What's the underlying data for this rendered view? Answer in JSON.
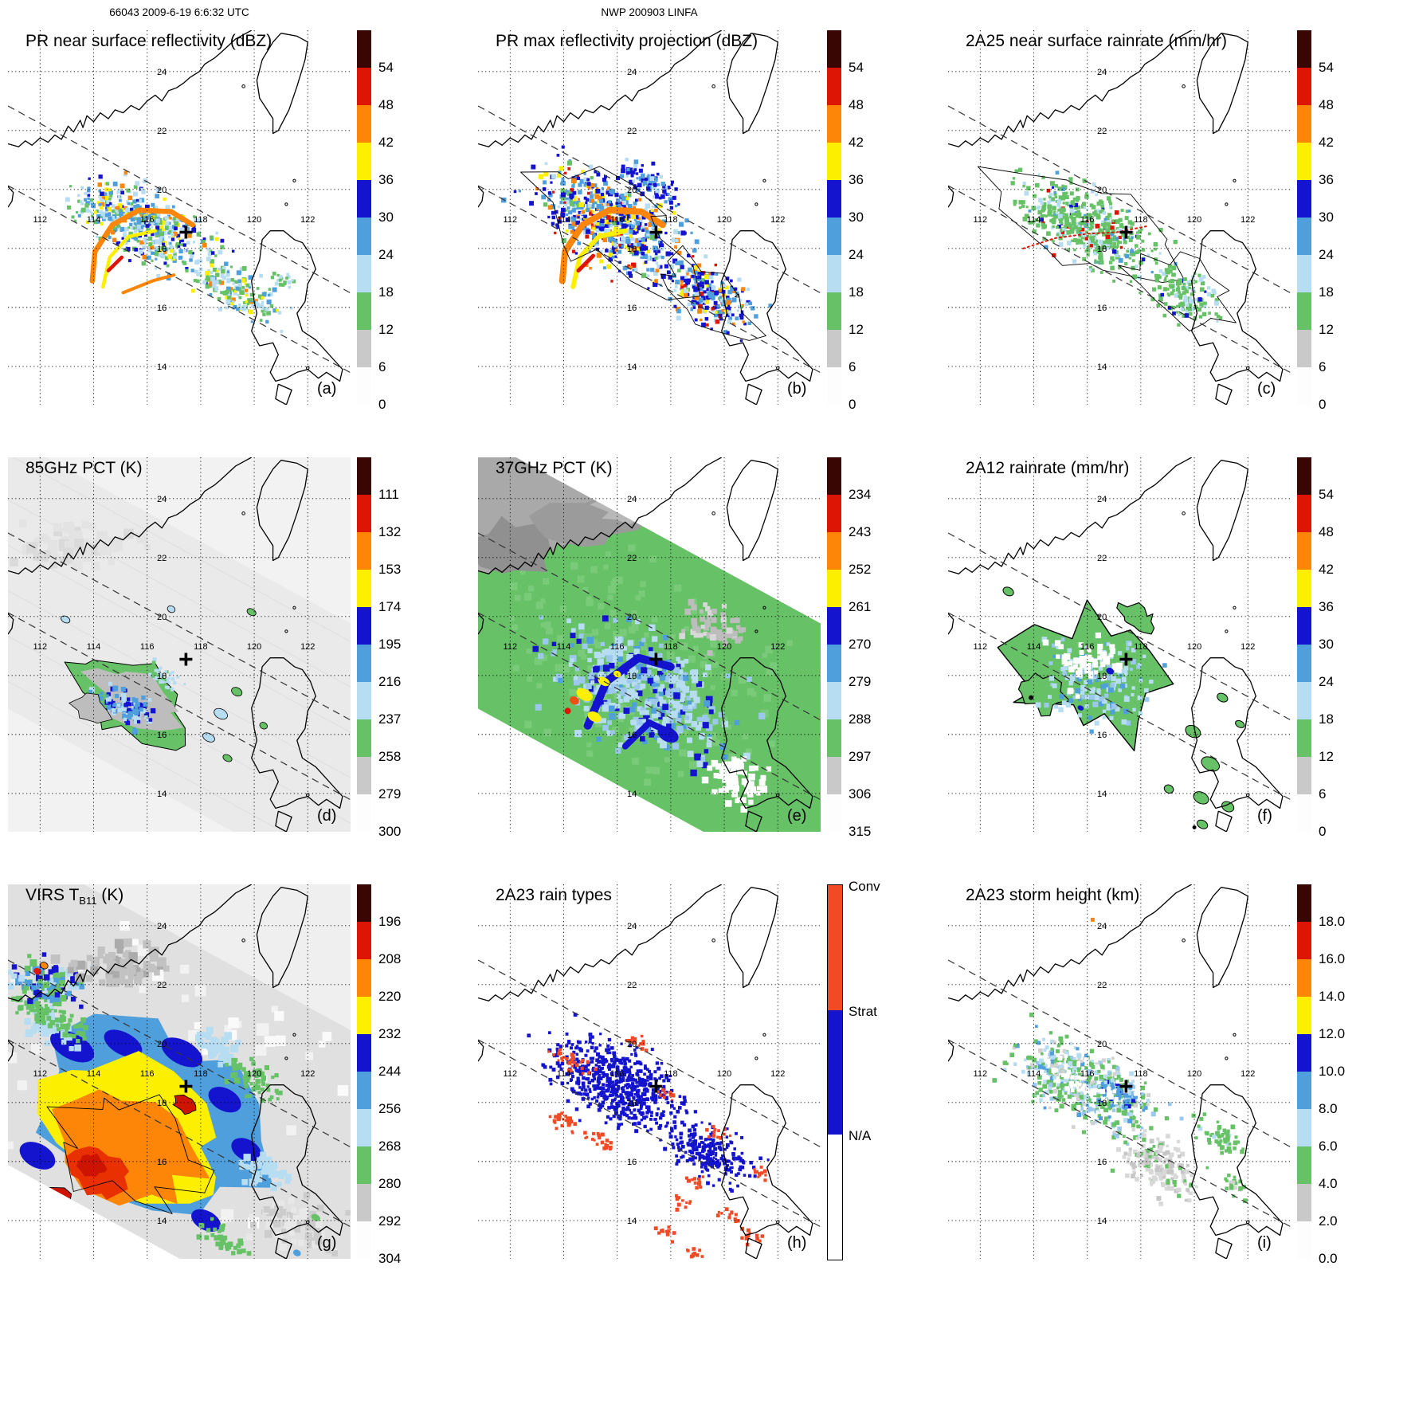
{
  "headers": {
    "left": "66043 2009-6-19 6:6:32 UTC",
    "center": "NWP 200903 LINFA"
  },
  "map": {
    "lon_labels": [
      "112",
      "114",
      "116",
      "118",
      "120",
      "122"
    ],
    "lat_labels": [
      "14",
      "16",
      "18",
      "20",
      "22",
      "24"
    ],
    "lon_values": [
      112,
      114,
      116,
      118,
      120,
      122
    ],
    "lat_values": [
      14,
      16,
      18,
      20,
      22,
      24
    ],
    "lon_range": [
      110.8,
      123.6
    ],
    "lat_range": [
      12.7,
      25.4
    ],
    "storm_center": {
      "lon": 117.45,
      "lat": 18.55
    }
  },
  "colorbars": {
    "dbz": {
      "ticks": [
        "54",
        "48",
        "42",
        "36",
        "30",
        "24",
        "18",
        "12",
        "6",
        "0"
      ],
      "colors": [
        "#3a0603",
        "#dc1505",
        "#fd8508",
        "#fdef00",
        "#1414cf",
        "#4f9fdd",
        "#b7ddf2",
        "#67c267",
        "#c9c9c9",
        "#fdfdfd"
      ]
    },
    "pct85": {
      "ticks": [
        "111",
        "132",
        "153",
        "174",
        "195",
        "216",
        "237",
        "258",
        "279",
        "300"
      ],
      "colors": [
        "#3a0603",
        "#dc1505",
        "#fd8508",
        "#fdef00",
        "#1414cf",
        "#4f9fdd",
        "#b7ddf2",
        "#67c267",
        "#c9c9c9",
        "#fdfdfd"
      ]
    },
    "pct37": {
      "ticks": [
        "234",
        "243",
        "252",
        "261",
        "270",
        "279",
        "288",
        "297",
        "306",
        "315"
      ],
      "colors": [
        "#3a0603",
        "#dc1505",
        "#fd8508",
        "#fdef00",
        "#1414cf",
        "#4f9fdd",
        "#b7ddf2",
        "#67c267",
        "#c9c9c9",
        "#fdfdfd"
      ]
    },
    "virs": {
      "ticks": [
        "196",
        "208",
        "220",
        "232",
        "244",
        "256",
        "268",
        "280",
        "292",
        "304"
      ],
      "colors": [
        "#3a0603",
        "#dc1505",
        "#fd8508",
        "#fdef00",
        "#1414cf",
        "#4f9fdd",
        "#b7ddf2",
        "#67c267",
        "#c9c9c9",
        "#fdfdfd"
      ]
    },
    "height": {
      "ticks": [
        "18.0",
        "16.0",
        "14.0",
        "12.0",
        "10.0",
        "8.0",
        "6.0",
        "4.0",
        "2.0",
        "0.0"
      ],
      "colors": [
        "#3a0603",
        "#dc1505",
        "#fd8508",
        "#fdef00",
        "#1414cf",
        "#4f9fdd",
        "#b7ddf2",
        "#67c267",
        "#c9c9c9",
        "#fdfdfd"
      ]
    },
    "raintype": {
      "labels": [
        "Conv",
        "Strat",
        "N/A"
      ],
      "colors": [
        "#f14a24",
        "#1414cf",
        "#ffffff"
      ]
    }
  },
  "panels": [
    {
      "id": "a",
      "letter": "(a)",
      "title": "PR near surface reflectivity (dBZ)",
      "colorbar": "dbz",
      "field": "pr_nsr"
    },
    {
      "id": "b",
      "letter": "(b)",
      "title": "PR max reflectivity projection (dBZ)",
      "colorbar": "dbz",
      "field": "pr_max"
    },
    {
      "id": "c",
      "letter": "(c)",
      "title": "2A25 near surface rainrate (mm/hr)",
      "colorbar": "dbz",
      "field": "rr2a25"
    },
    {
      "id": "d",
      "letter": "(d)",
      "title": "85GHz PCT (K)",
      "colorbar": "pct85",
      "field": "pct85"
    },
    {
      "id": "e",
      "letter": "(e)",
      "title": "37GHz PCT (K)",
      "colorbar": "pct37",
      "field": "pct37"
    },
    {
      "id": "f",
      "letter": "(f)",
      "title": "2A12 rainrate (mm/hr)",
      "colorbar": "dbz",
      "field": "rr2a12"
    },
    {
      "id": "g",
      "letter": "(g)",
      "title_prefix": "VIRS T",
      "title_sub": "B11",
      "title_suffix": " (K)",
      "colorbar": "virs",
      "field": "virs"
    },
    {
      "id": "h",
      "letter": "(h)",
      "title": "2A23 rain types",
      "colorbar": "raintype",
      "field": "raintype"
    },
    {
      "id": "i",
      "letter": "(i)",
      "title": "2A23 storm height (km)",
      "colorbar": "height",
      "field": "sheight"
    }
  ],
  "chart_data": {
    "type": "heatmap",
    "layout": "3x3 satellite map panels of tropical cyclone LINFA",
    "x_axis": {
      "ticks": [
        112,
        114,
        116,
        118,
        120,
        122
      ]
    },
    "y_axis": {
      "ticks": [
        14,
        16,
        18,
        20,
        22,
        24
      ]
    },
    "storm_marker": {
      "lon": 117.4,
      "lat": 18.6
    },
    "panels": [
      {
        "letter": "(a)",
        "title": "PR near surface reflectivity (dBZ)",
        "colorbar_ticks": [
          54,
          48,
          42,
          36,
          30,
          24,
          18,
          12,
          6,
          0
        ]
      },
      {
        "letter": "(b)",
        "title": "PR max reflectivity projection (dBZ)",
        "colorbar_ticks": [
          54,
          48,
          42,
          36,
          30,
          24,
          18,
          12,
          6,
          0
        ]
      },
      {
        "letter": "(c)",
        "title": "2A25 near surface rainrate (mm/hr)",
        "colorbar_ticks": [
          54,
          48,
          42,
          36,
          30,
          24,
          18,
          12,
          6,
          0
        ]
      },
      {
        "letter": "(d)",
        "title": "85GHz PCT (K)",
        "colorbar_ticks": [
          111,
          132,
          153,
          174,
          195,
          216,
          237,
          258,
          279,
          300
        ]
      },
      {
        "letter": "(e)",
        "title": "37GHz PCT (K)",
        "colorbar_ticks": [
          234,
          243,
          252,
          261,
          270,
          279,
          288,
          297,
          306,
          315
        ]
      },
      {
        "letter": "(f)",
        "title": "2A12 rainrate (mm/hr)",
        "colorbar_ticks": [
          54,
          48,
          42,
          36,
          30,
          24,
          18,
          12,
          6,
          0
        ]
      },
      {
        "letter": "(g)",
        "title": "VIRS TB11 (K)",
        "colorbar_ticks": [
          196,
          208,
          220,
          232,
          244,
          256,
          268,
          280,
          292,
          304
        ]
      },
      {
        "letter": "(h)",
        "title": "2A23 rain types",
        "colorbar_categories": [
          "Conv",
          "Strat",
          "N/A"
        ]
      },
      {
        "letter": "(i)",
        "title": "2A23 storm height (km)",
        "colorbar_ticks": [
          18.0,
          16.0,
          14.0,
          12.0,
          10.0,
          8.0,
          6.0,
          4.0,
          2.0,
          0.0
        ]
      }
    ]
  }
}
